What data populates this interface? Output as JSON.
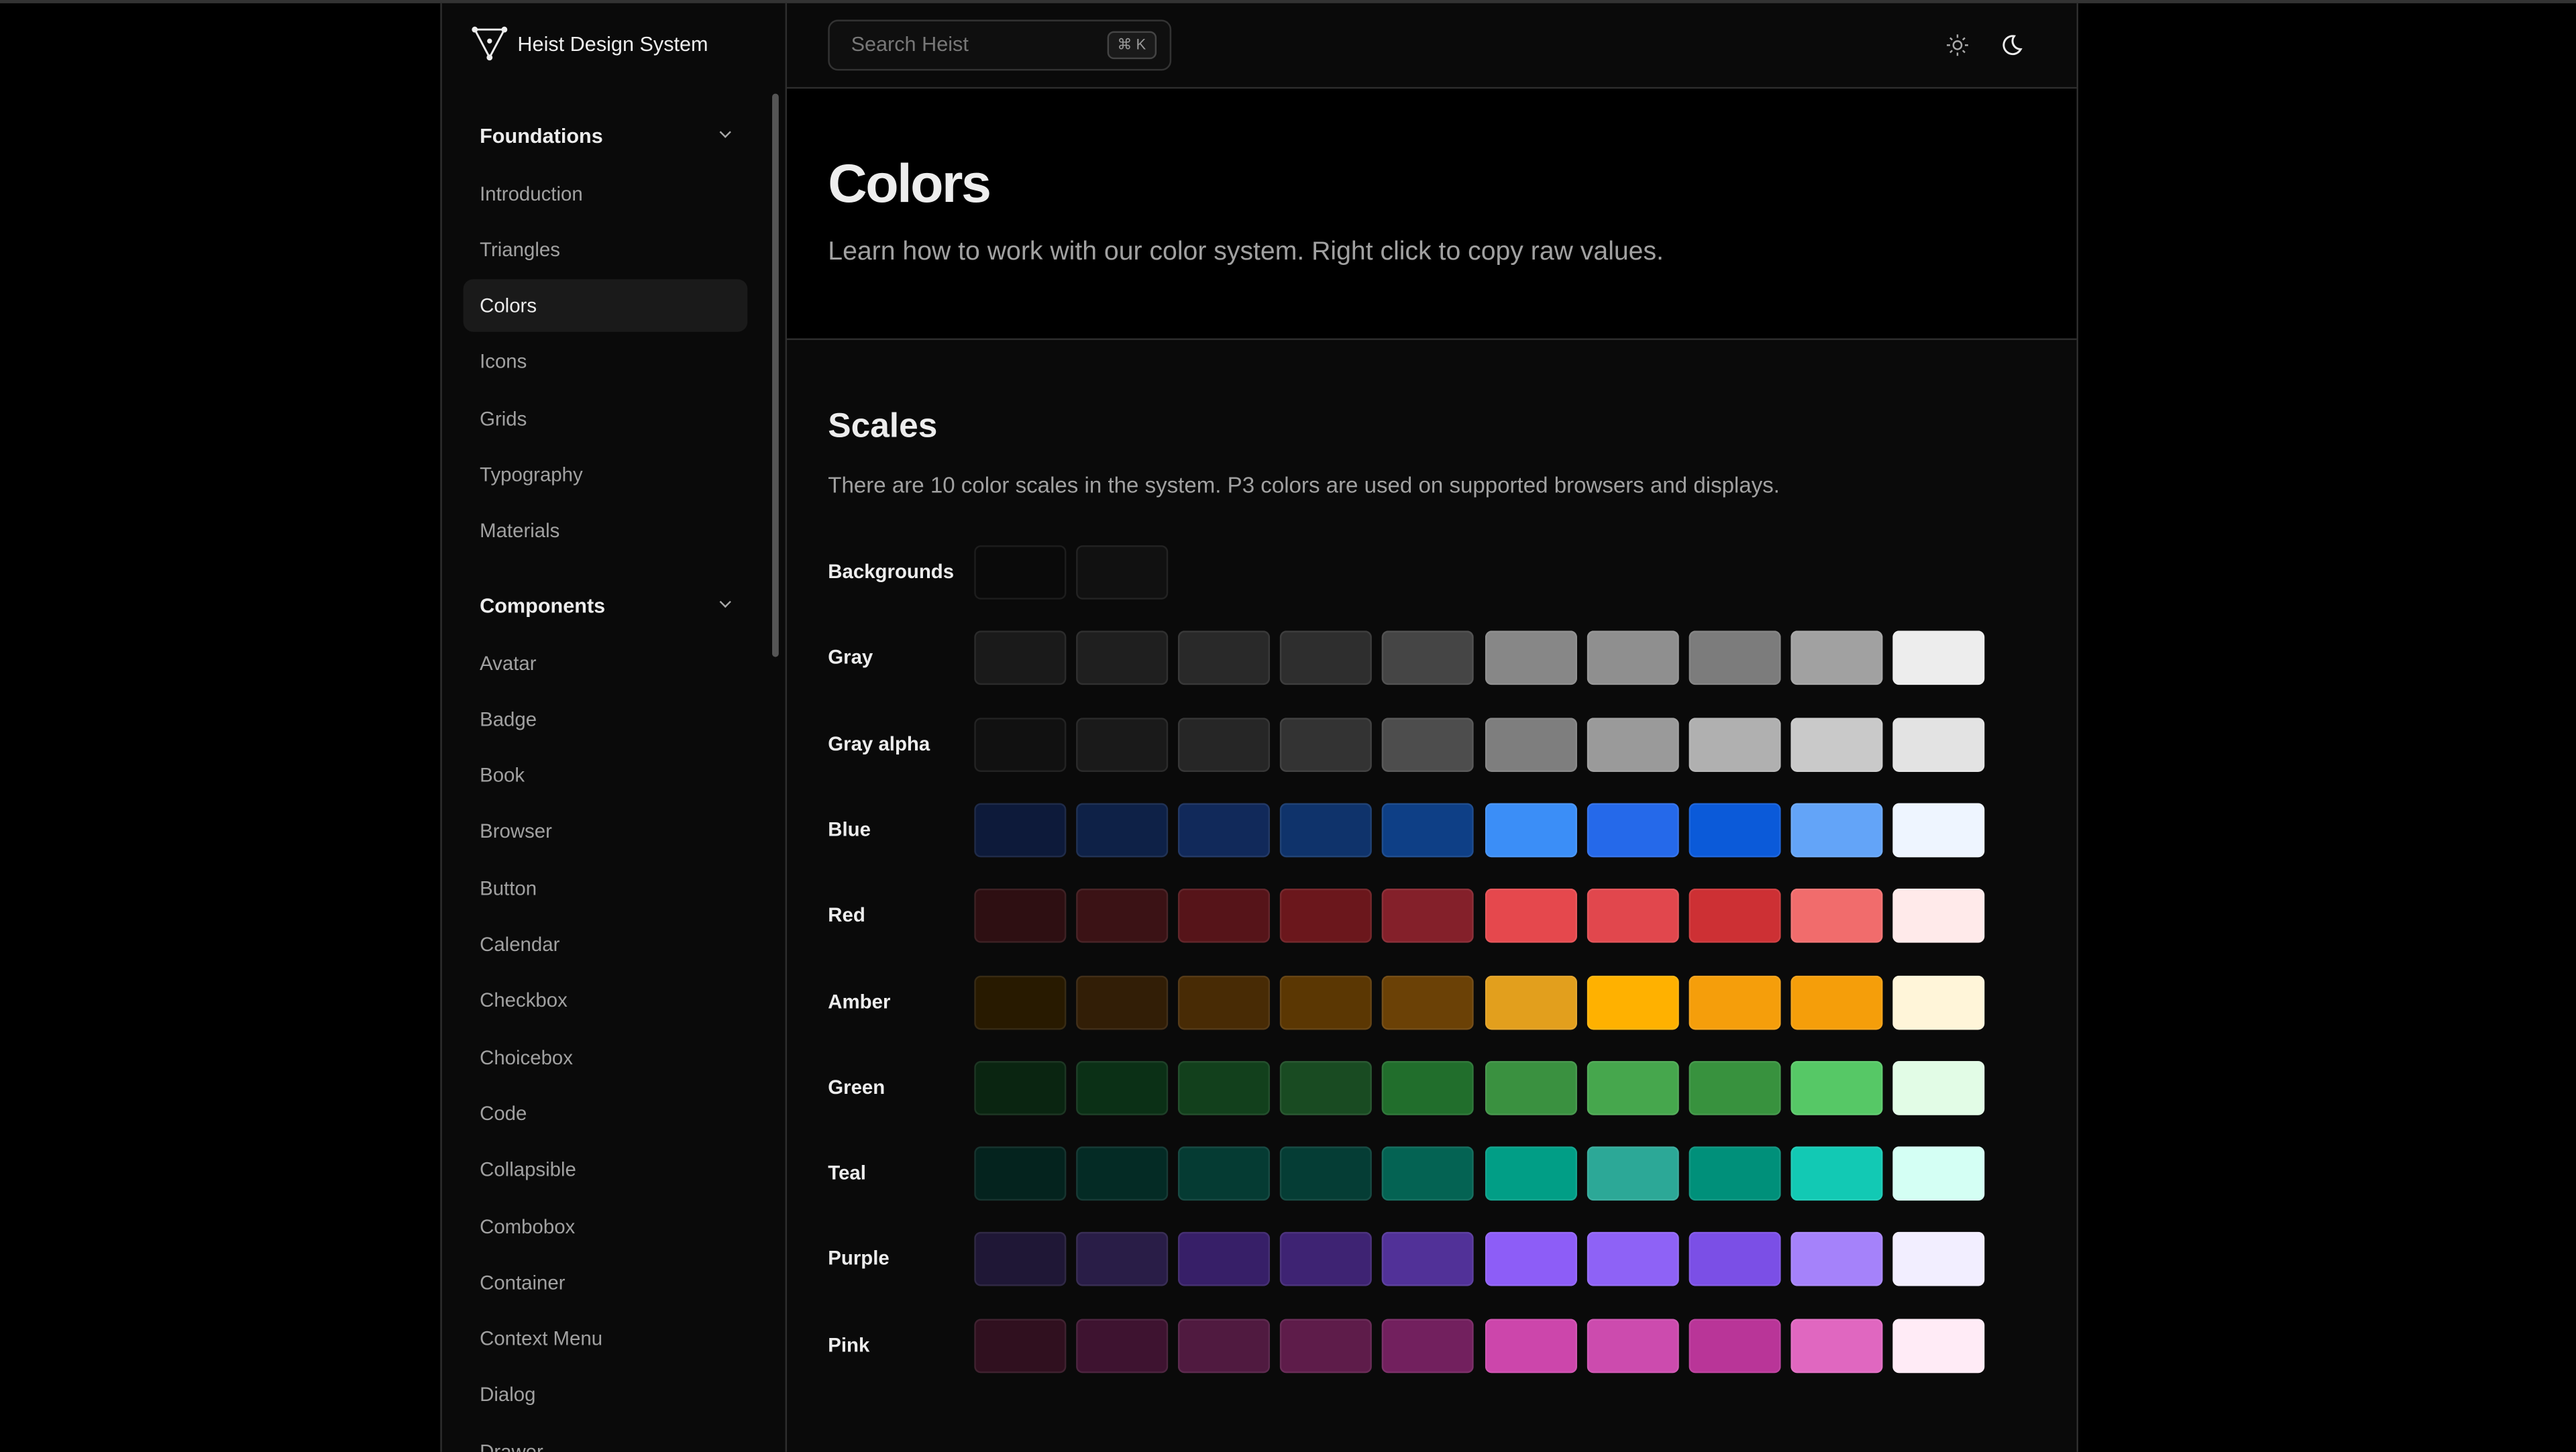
{
  "header": {
    "brand": "Heist Design System",
    "search_placeholder": "Search Heist",
    "search_shortcut": "⌘ K"
  },
  "sidebar": {
    "sections": [
      {
        "title": "Foundations",
        "items": [
          "Introduction",
          "Triangles",
          "Colors",
          "Icons",
          "Grids",
          "Typography",
          "Materials"
        ],
        "active": 2
      },
      {
        "title": "Components",
        "items": [
          "Avatar",
          "Badge",
          "Book",
          "Browser",
          "Button",
          "Calendar",
          "Checkbox",
          "Choicebox",
          "Code",
          "Collapsible",
          "Combobox",
          "Container",
          "Context Menu",
          "Dialog",
          "Drawer"
        ]
      }
    ]
  },
  "page": {
    "title": "Colors",
    "subtitle": "Learn how to work with our color system. Right click to copy raw values.",
    "section_title": "Scales",
    "section_text": "There are 10 color scales in the system. P3 colors are used on supported browsers and displays.",
    "scales": [
      {
        "name": "Backgrounds",
        "colors": [
          "#0a0a0a",
          "#111111"
        ]
      },
      {
        "name": "Gray",
        "colors": [
          "#1a1a1a",
          "#1f1f1f",
          "#292929",
          "#2e2e2e",
          "#454545",
          "#878787",
          "#8f8f8f",
          "#7c7c7c",
          "#a1a1a1",
          "#ededed"
        ]
      },
      {
        "name": "Gray alpha",
        "colors": [
          "#111111",
          "#1a1a1a",
          "#262626",
          "#333333",
          "#4d4d4d",
          "#7e7e7e",
          "#9a9a9a",
          "#b0b0b0",
          "#c9c9c9",
          "#e3e3e3"
        ]
      },
      {
        "name": "Blue",
        "colors": [
          "#0d1a3a",
          "#0e2147",
          "#11295a",
          "#0f336b",
          "#0e3f86",
          "#3b8ef7",
          "#2569ea",
          "#0b5ad9",
          "#63a4f8",
          "#eef5ff"
        ]
      },
      {
        "name": "Red",
        "colors": [
          "#2e0f12",
          "#3b1215",
          "#561419",
          "#6b171c",
          "#84202a",
          "#e5484d",
          "#e1474d",
          "#cd3034",
          "#f16c6c",
          "#ffeaea"
        ]
      },
      {
        "name": "Amber",
        "colors": [
          "#281a00",
          "#321e06",
          "#482b05",
          "#5b3703",
          "#6b4106",
          "#e29f1d",
          "#ffb100",
          "#f59e0b",
          "#f59e0a",
          "#fff5d9"
        ]
      },
      {
        "name": "Green",
        "colors": [
          "#0a2511",
          "#0b3016",
          "#12401c",
          "#194b22",
          "#216e2c",
          "#3a9140",
          "#46a74d",
          "#38923e",
          "#56c866",
          "#e2fce6"
        ]
      },
      {
        "name": "Teal",
        "colors": [
          "#04231e",
          "#042b25",
          "#053b33",
          "#053d35",
          "#046353",
          "#019e86",
          "#2ca897",
          "#00907a",
          "#12c9b4",
          "#d4fff4"
        ]
      },
      {
        "name": "Purple",
        "colors": [
          "#1f1736",
          "#291d47",
          "#371f68",
          "#3e2373",
          "#513198",
          "#8d5df7",
          "#8e62f6",
          "#7b4fe6",
          "#a582fa",
          "#f2eeff"
        ]
      },
      {
        "name": "Pink",
        "colors": [
          "#30101f",
          "#3e1330",
          "#501a40",
          "#5e1c4a",
          "#72205e",
          "#cc46ab",
          "#cc4bae",
          "#b93598",
          "#e067c0",
          "#ffebf6"
        ]
      }
    ]
  }
}
